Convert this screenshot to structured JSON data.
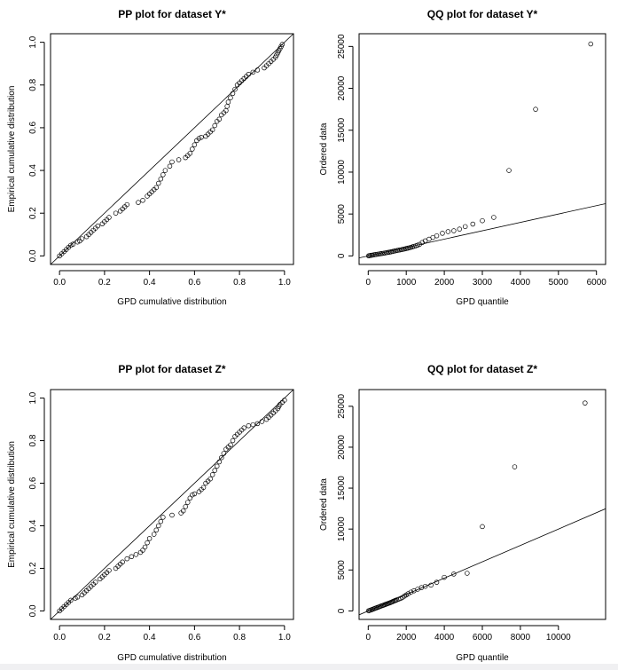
{
  "chart_data": [
    {
      "id": "pp_y",
      "type": "scatter",
      "title": "PP plot for dataset Y*",
      "xlabel": "GPD cumulative distribution",
      "ylabel": "Empirical cumulative distribution",
      "xlim": [
        0,
        1
      ],
      "ylim": [
        0,
        1
      ],
      "xticks": [
        0.0,
        0.2,
        0.4,
        0.6,
        0.8,
        1.0
      ],
      "yticks": [
        0.0,
        0.2,
        0.4,
        0.6,
        0.8,
        1.0
      ],
      "tick_labels_x": [
        "0.0",
        "0.2",
        "0.4",
        "0.6",
        "0.8",
        "1.0"
      ],
      "tick_labels_y": [
        "0.0",
        "0.2",
        "0.4",
        "0.6",
        "0.8",
        "1.0"
      ],
      "reference_line": {
        "intercept": 0,
        "slope": 1
      },
      "marker": "open-circle",
      "points": [
        [
          0.0,
          0.0
        ],
        [
          0.01,
          0.01
        ],
        [
          0.02,
          0.02
        ],
        [
          0.03,
          0.03
        ],
        [
          0.04,
          0.04
        ],
        [
          0.05,
          0.05
        ],
        [
          0.06,
          0.055
        ],
        [
          0.08,
          0.065
        ],
        [
          0.09,
          0.07
        ],
        [
          0.1,
          0.08
        ],
        [
          0.12,
          0.09
        ],
        [
          0.13,
          0.1
        ],
        [
          0.14,
          0.11
        ],
        [
          0.15,
          0.12
        ],
        [
          0.16,
          0.13
        ],
        [
          0.17,
          0.14
        ],
        [
          0.19,
          0.15
        ],
        [
          0.2,
          0.16
        ],
        [
          0.21,
          0.17
        ],
        [
          0.22,
          0.18
        ],
        [
          0.25,
          0.2
        ],
        [
          0.27,
          0.21
        ],
        [
          0.28,
          0.22
        ],
        [
          0.29,
          0.23
        ],
        [
          0.3,
          0.24
        ],
        [
          0.35,
          0.25
        ],
        [
          0.37,
          0.26
        ],
        [
          0.39,
          0.28
        ],
        [
          0.4,
          0.29
        ],
        [
          0.41,
          0.3
        ],
        [
          0.42,
          0.31
        ],
        [
          0.43,
          0.32
        ],
        [
          0.44,
          0.34
        ],
        [
          0.45,
          0.36
        ],
        [
          0.46,
          0.38
        ],
        [
          0.47,
          0.4
        ],
        [
          0.49,
          0.42
        ],
        [
          0.5,
          0.44
        ],
        [
          0.53,
          0.45
        ],
        [
          0.56,
          0.46
        ],
        [
          0.57,
          0.47
        ],
        [
          0.58,
          0.48
        ],
        [
          0.59,
          0.5
        ],
        [
          0.6,
          0.52
        ],
        [
          0.61,
          0.54
        ],
        [
          0.62,
          0.55
        ],
        [
          0.63,
          0.555
        ],
        [
          0.65,
          0.56
        ],
        [
          0.66,
          0.57
        ],
        [
          0.67,
          0.58
        ],
        [
          0.68,
          0.59
        ],
        [
          0.69,
          0.61
        ],
        [
          0.7,
          0.63
        ],
        [
          0.71,
          0.64
        ],
        [
          0.72,
          0.66
        ],
        [
          0.73,
          0.67
        ],
        [
          0.74,
          0.68
        ],
        [
          0.745,
          0.7
        ],
        [
          0.75,
          0.72
        ],
        [
          0.76,
          0.74
        ],
        [
          0.77,
          0.76
        ],
        [
          0.78,
          0.78
        ],
        [
          0.79,
          0.8
        ],
        [
          0.8,
          0.81
        ],
        [
          0.81,
          0.82
        ],
        [
          0.82,
          0.83
        ],
        [
          0.83,
          0.84
        ],
        [
          0.84,
          0.85
        ],
        [
          0.86,
          0.86
        ],
        [
          0.88,
          0.87
        ],
        [
          0.91,
          0.88
        ],
        [
          0.92,
          0.89
        ],
        [
          0.93,
          0.9
        ],
        [
          0.94,
          0.91
        ],
        [
          0.95,
          0.92
        ],
        [
          0.96,
          0.93
        ],
        [
          0.965,
          0.94
        ],
        [
          0.97,
          0.95
        ],
        [
          0.975,
          0.96
        ],
        [
          0.98,
          0.97
        ],
        [
          0.985,
          0.98
        ],
        [
          0.99,
          0.99
        ]
      ]
    },
    {
      "id": "qq_y",
      "type": "scatter",
      "title": "QQ plot for dataset Y*",
      "xlabel": "GPD quantile",
      "ylabel": "Ordered data",
      "xlim": [
        0,
        6000
      ],
      "ylim": [
        0,
        25500
      ],
      "xticks": [
        0,
        1000,
        2000,
        3000,
        4000,
        5000,
        6000
      ],
      "yticks": [
        0,
        5000,
        10000,
        15000,
        20000,
        25000
      ],
      "tick_labels_x": [
        "0",
        "1000",
        "2000",
        "3000",
        "4000",
        "5000",
        "6000"
      ],
      "tick_labels_y": [
        "0",
        "5000",
        "10000",
        "15000",
        "20000",
        "25000"
      ],
      "reference_line": {
        "intercept": 0,
        "slope": 1
      },
      "marker": "open-circle",
      "points": [
        [
          10,
          10
        ],
        [
          30,
          30
        ],
        [
          60,
          60
        ],
        [
          90,
          80
        ],
        [
          120,
          110
        ],
        [
          160,
          140
        ],
        [
          200,
          170
        ],
        [
          240,
          200
        ],
        [
          280,
          230
        ],
        [
          320,
          260
        ],
        [
          360,
          290
        ],
        [
          400,
          320
        ],
        [
          440,
          350
        ],
        [
          480,
          390
        ],
        [
          520,
          420
        ],
        [
          560,
          450
        ],
        [
          600,
          490
        ],
        [
          640,
          530
        ],
        [
          680,
          570
        ],
        [
          720,
          610
        ],
        [
          760,
          650
        ],
        [
          800,
          690
        ],
        [
          840,
          720
        ],
        [
          880,
          760
        ],
        [
          920,
          800
        ],
        [
          960,
          840
        ],
        [
          1000,
          880
        ],
        [
          1040,
          920
        ],
        [
          1080,
          970
        ],
        [
          1120,
          1020
        ],
        [
          1160,
          1080
        ],
        [
          1200,
          1140
        ],
        [
          1250,
          1200
        ],
        [
          1300,
          1280
        ],
        [
          1350,
          1380
        ],
        [
          1420,
          1600
        ],
        [
          1500,
          1800
        ],
        [
          1600,
          2000
        ],
        [
          1700,
          2200
        ],
        [
          1800,
          2400
        ],
        [
          1950,
          2700
        ],
        [
          2100,
          2900
        ],
        [
          2250,
          3000
        ],
        [
          2400,
          3200
        ],
        [
          2550,
          3500
        ],
        [
          2750,
          3800
        ],
        [
          3000,
          4200
        ],
        [
          3300,
          4600
        ],
        [
          3700,
          10200
        ],
        [
          4400,
          17500
        ],
        [
          5850,
          25300
        ]
      ]
    },
    {
      "id": "pp_z",
      "type": "scatter",
      "title": "PP plot for dataset Z*",
      "xlabel": "GPD cumulative distribution",
      "ylabel": "Empirical cumulative distribution",
      "xlim": [
        0,
        1
      ],
      "ylim": [
        0,
        1
      ],
      "xticks": [
        0.0,
        0.2,
        0.4,
        0.6,
        0.8,
        1.0
      ],
      "yticks": [
        0.0,
        0.2,
        0.4,
        0.6,
        0.8,
        1.0
      ],
      "tick_labels_x": [
        "0.0",
        "0.2",
        "0.4",
        "0.6",
        "0.8",
        "1.0"
      ],
      "tick_labels_y": [
        "0.0",
        "0.2",
        "0.4",
        "0.6",
        "0.8",
        "1.0"
      ],
      "reference_line": {
        "intercept": 0,
        "slope": 1
      },
      "marker": "open-circle",
      "points": [
        [
          0.0,
          0.0
        ],
        [
          0.01,
          0.01
        ],
        [
          0.02,
          0.02
        ],
        [
          0.03,
          0.03
        ],
        [
          0.04,
          0.04
        ],
        [
          0.05,
          0.05
        ],
        [
          0.07,
          0.06
        ],
        [
          0.08,
          0.065
        ],
        [
          0.1,
          0.075
        ],
        [
          0.11,
          0.085
        ],
        [
          0.12,
          0.095
        ],
        [
          0.13,
          0.105
        ],
        [
          0.14,
          0.115
        ],
        [
          0.15,
          0.125
        ],
        [
          0.16,
          0.135
        ],
        [
          0.18,
          0.15
        ],
        [
          0.19,
          0.16
        ],
        [
          0.2,
          0.17
        ],
        [
          0.21,
          0.18
        ],
        [
          0.22,
          0.19
        ],
        [
          0.25,
          0.2
        ],
        [
          0.26,
          0.21
        ],
        [
          0.27,
          0.22
        ],
        [
          0.28,
          0.23
        ],
        [
          0.3,
          0.245
        ],
        [
          0.32,
          0.255
        ],
        [
          0.34,
          0.265
        ],
        [
          0.36,
          0.275
        ],
        [
          0.37,
          0.285
        ],
        [
          0.38,
          0.3
        ],
        [
          0.39,
          0.32
        ],
        [
          0.4,
          0.34
        ],
        [
          0.42,
          0.36
        ],
        [
          0.43,
          0.38
        ],
        [
          0.44,
          0.4
        ],
        [
          0.45,
          0.42
        ],
        [
          0.46,
          0.44
        ],
        [
          0.5,
          0.45
        ],
        [
          0.54,
          0.46
        ],
        [
          0.55,
          0.47
        ],
        [
          0.56,
          0.49
        ],
        [
          0.57,
          0.51
        ],
        [
          0.58,
          0.53
        ],
        [
          0.59,
          0.545
        ],
        [
          0.6,
          0.55
        ],
        [
          0.62,
          0.56
        ],
        [
          0.63,
          0.57
        ],
        [
          0.64,
          0.58
        ],
        [
          0.65,
          0.6
        ],
        [
          0.66,
          0.61
        ],
        [
          0.67,
          0.62
        ],
        [
          0.68,
          0.64
        ],
        [
          0.69,
          0.66
        ],
        [
          0.7,
          0.68
        ],
        [
          0.71,
          0.7
        ],
        [
          0.72,
          0.72
        ],
        [
          0.73,
          0.74
        ],
        [
          0.74,
          0.76
        ],
        [
          0.75,
          0.77
        ],
        [
          0.76,
          0.78
        ],
        [
          0.77,
          0.8
        ],
        [
          0.78,
          0.82
        ],
        [
          0.79,
          0.83
        ],
        [
          0.8,
          0.84
        ],
        [
          0.81,
          0.85
        ],
        [
          0.82,
          0.86
        ],
        [
          0.84,
          0.87
        ],
        [
          0.86,
          0.875
        ],
        [
          0.88,
          0.88
        ],
        [
          0.9,
          0.89
        ],
        [
          0.92,
          0.9
        ],
        [
          0.93,
          0.91
        ],
        [
          0.94,
          0.92
        ],
        [
          0.95,
          0.93
        ],
        [
          0.96,
          0.94
        ],
        [
          0.97,
          0.95
        ],
        [
          0.975,
          0.96
        ],
        [
          0.98,
          0.97
        ],
        [
          0.99,
          0.98
        ],
        [
          1.0,
          0.99
        ]
      ]
    },
    {
      "id": "qq_z",
      "type": "scatter",
      "title": "QQ plot for dataset Z*",
      "xlabel": "GPD quantile",
      "ylabel": "Ordered data",
      "xlim": [
        0,
        12000
      ],
      "ylim": [
        0,
        26000
      ],
      "xticks": [
        0,
        2000,
        4000,
        6000,
        8000,
        10000
      ],
      "yticks": [
        0,
        5000,
        10000,
        15000,
        20000,
        25000
      ],
      "tick_labels_x": [
        "0",
        "2000",
        "4000",
        "6000",
        "8000",
        "10000"
      ],
      "tick_labels_y": [
        "0",
        "5000",
        "10000",
        "15000",
        "20000",
        "25000"
      ],
      "reference_line": {
        "intercept": 0,
        "slope": 1
      },
      "marker": "open-circle",
      "points": [
        [
          20,
          20
        ],
        [
          60,
          50
        ],
        [
          120,
          100
        ],
        [
          180,
          150
        ],
        [
          240,
          210
        ],
        [
          300,
          260
        ],
        [
          360,
          320
        ],
        [
          420,
          370
        ],
        [
          480,
          420
        ],
        [
          540,
          470
        ],
        [
          600,
          520
        ],
        [
          660,
          580
        ],
        [
          720,
          630
        ],
        [
          780,
          680
        ],
        [
          840,
          730
        ],
        [
          900,
          790
        ],
        [
          960,
          840
        ],
        [
          1020,
          890
        ],
        [
          1080,
          940
        ],
        [
          1140,
          990
        ],
        [
          1200,
          1050
        ],
        [
          1260,
          1110
        ],
        [
          1320,
          1170
        ],
        [
          1380,
          1230
        ],
        [
          1440,
          1290
        ],
        [
          1500,
          1350
        ],
        [
          1600,
          1430
        ],
        [
          1700,
          1520
        ],
        [
          1800,
          1650
        ],
        [
          1900,
          1800
        ],
        [
          2000,
          1950
        ],
        [
          2100,
          2100
        ],
        [
          2250,
          2300
        ],
        [
          2400,
          2450
        ],
        [
          2600,
          2650
        ],
        [
          2800,
          2850
        ],
        [
          3000,
          3000
        ],
        [
          3300,
          3150
        ],
        [
          3600,
          3500
        ],
        [
          4000,
          4100
        ],
        [
          4500,
          4500
        ],
        [
          5200,
          4600
        ],
        [
          6000,
          10300
        ],
        [
          7700,
          17600
        ],
        [
          11400,
          25400
        ]
      ]
    }
  ]
}
